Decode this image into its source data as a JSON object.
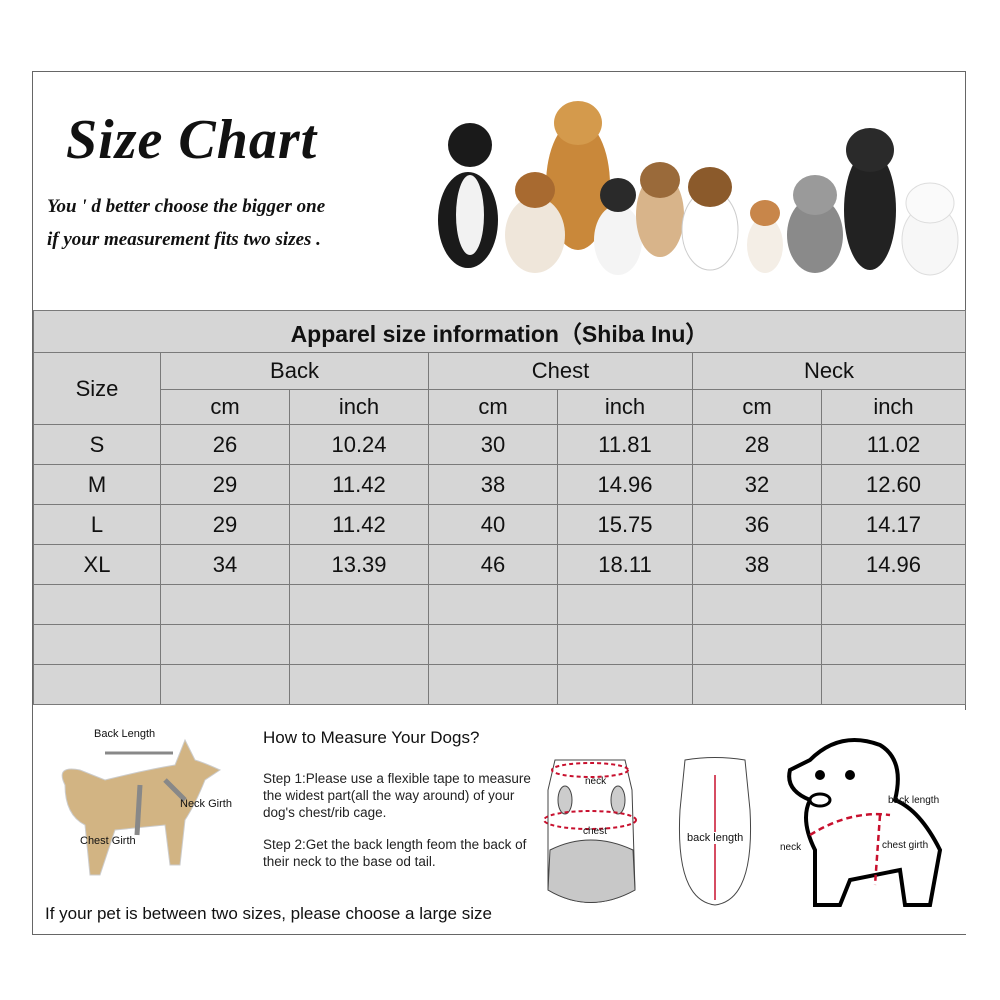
{
  "header": {
    "title": "Size Chart",
    "subtitle_line1": "You ' d better choose the bigger one",
    "subtitle_line2": "if your measurement fits two sizes ."
  },
  "table": {
    "title": "Apparel  size  information（Shiba Inu）",
    "size_header": "Size",
    "groups": [
      "Back",
      "Chest",
      "Neck"
    ],
    "units": [
      "cm",
      "inch",
      "cm",
      "inch",
      "cm",
      "inch"
    ],
    "rows": [
      {
        "size": "S",
        "values": [
          "26",
          "10.24",
          "30",
          "11.81",
          "28",
          "11.02"
        ]
      },
      {
        "size": "M",
        "values": [
          "29",
          "11.42",
          "38",
          "14.96",
          "32",
          "12.60"
        ]
      },
      {
        "size": "L",
        "values": [
          "29",
          "11.42",
          "40",
          "15.75",
          "36",
          "14.17"
        ]
      },
      {
        "size": "XL",
        "values": [
          "34",
          "13.39",
          "46",
          "18.11",
          "38",
          "14.96"
        ]
      }
    ]
  },
  "guide": {
    "dog_labels": {
      "back_length": "Back Length",
      "neck_girth": "Neck Girth",
      "chest_girth": "Chest Girth"
    },
    "heading": "How to Measure Your Dogs?",
    "step1": "Step 1:Please use a flexible tape to measure the widest part(all the way around) of your dog's chest/rib cage.",
    "step2": "Step 2:Get the back length feom the back of their neck to the base od tail.",
    "note": "If your pet is between two sizes, please choose a large size",
    "garment_labels": {
      "neck": "neck",
      "chest": "chest",
      "back_length": "back length"
    },
    "puppy_labels": {
      "back_length": "back length",
      "neck": "neck",
      "chest_girth": "chest girth"
    }
  },
  "colors": {
    "table_bg": "#d6d6d6",
    "measure_red": "#c8102e"
  }
}
